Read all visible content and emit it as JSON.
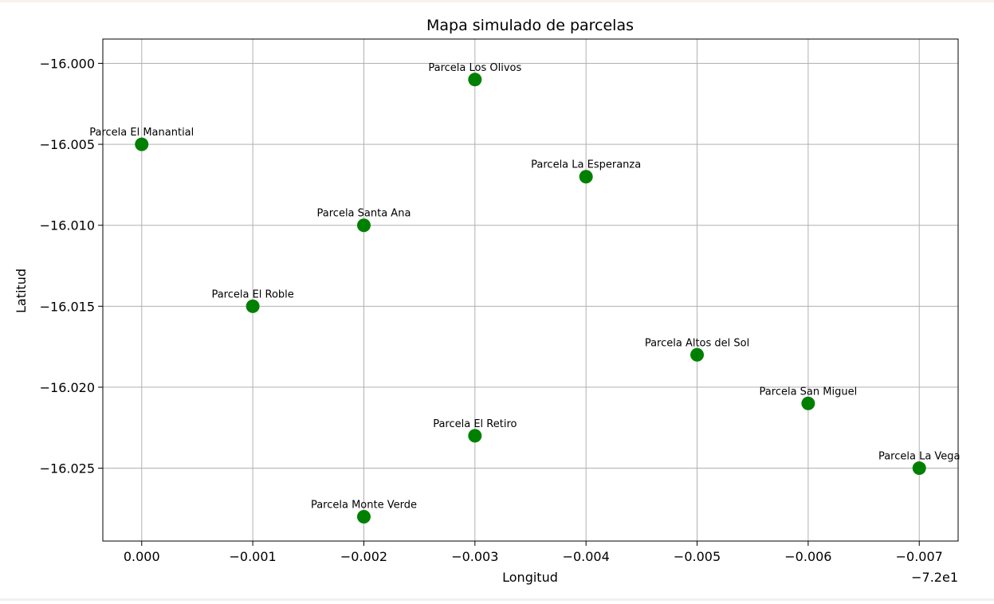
{
  "chart_data": {
    "type": "scatter",
    "title": "Mapa simulado de parcelas",
    "xlabel": "Longitud",
    "ylabel": "Latitud",
    "x_offset_label": "−7.2e1",
    "x_ticks": [
      0.0,
      -0.001,
      -0.002,
      -0.003,
      -0.004,
      -0.005,
      -0.006,
      -0.007
    ],
    "x_tick_labels": [
      "0.000",
      "−0.001",
      "−0.002",
      "−0.003",
      "−0.004",
      "−0.005",
      "−0.006",
      "−0.007"
    ],
    "y_ticks": [
      -16.0,
      -16.005,
      -16.01,
      -16.015,
      -16.02,
      -16.025
    ],
    "y_tick_labels": [
      "−16.000",
      "−16.005",
      "−16.010",
      "−16.015",
      "−16.020",
      "−16.025"
    ],
    "xlim": [
      0.00035,
      -0.00735
    ],
    "ylim": [
      -16.0295,
      -15.9985
    ],
    "grid": true,
    "marker_color": "#008000",
    "points": [
      {
        "label": "Parcela Los Olivos",
        "x": -0.003,
        "y": -16.001
      },
      {
        "label": "Parcela El Manantial",
        "x": 0.0,
        "y": -16.005
      },
      {
        "label": "Parcela La Esperanza",
        "x": -0.004,
        "y": -16.007
      },
      {
        "label": "Parcela Santa Ana",
        "x": -0.002,
        "y": -16.01
      },
      {
        "label": "Parcela El Roble",
        "x": -0.001,
        "y": -16.015
      },
      {
        "label": "Parcela Altos del Sol",
        "x": -0.005,
        "y": -16.018
      },
      {
        "label": "Parcela San Miguel",
        "x": -0.006,
        "y": -16.021
      },
      {
        "label": "Parcela El Retiro",
        "x": -0.003,
        "y": -16.023
      },
      {
        "label": "Parcela La Vega",
        "x": -0.007,
        "y": -16.025
      },
      {
        "label": "Parcela Monte Verde",
        "x": -0.002,
        "y": -16.028
      }
    ]
  }
}
